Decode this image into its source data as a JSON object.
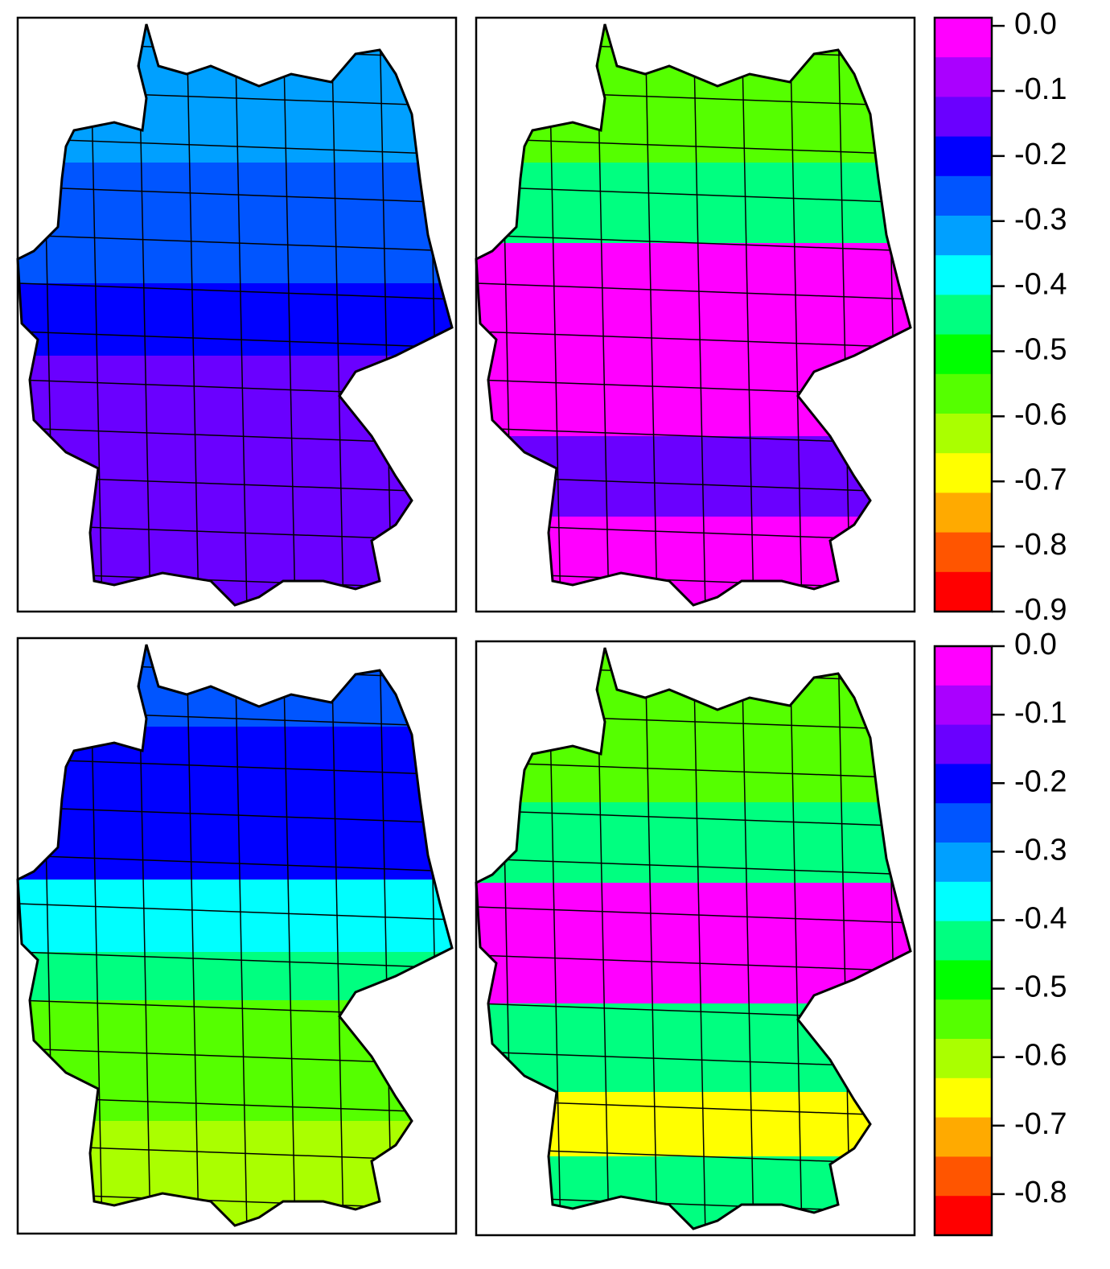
{
  "colorbars": [
    {
      "range": [
        -0.9,
        0.0125
      ],
      "colors": [
        "#ff00ff",
        "#aa00ff",
        "#6a00ff",
        "#0000ff",
        "#0055ff",
        "#00a0ff",
        "#00ffff",
        "#00ff80",
        "#00ff00",
        "#55ff00",
        "#aaff00",
        "#ffff00",
        "#ffaa00",
        "#ff5500",
        "#ff0000"
      ],
      "ticks": [
        {
          "value": 0,
          "label": "0.0"
        },
        {
          "value": -0.1,
          "label": "-0.1"
        },
        {
          "value": -0.2,
          "label": "-0.2"
        },
        {
          "value": -0.3,
          "label": "-0.3"
        },
        {
          "value": -0.4,
          "label": "-0.4"
        },
        {
          "value": -0.5,
          "label": "-0.5"
        },
        {
          "value": -0.6,
          "label": "-0.6"
        },
        {
          "value": -0.7,
          "label": "-0.7"
        },
        {
          "value": -0.8,
          "label": "-0.8"
        },
        {
          "value": -0.9,
          "label": "-0.9"
        }
      ]
    },
    {
      "range": [
        -0.86,
        0.0
      ],
      "colors": [
        "#ff00ff",
        "#aa00ff",
        "#6a00ff",
        "#0000ff",
        "#0055ff",
        "#00a0ff",
        "#00ffff",
        "#00ff80",
        "#00ff00",
        "#55ff00",
        "#aaff00",
        "#ffff00",
        "#ffaa00",
        "#ff5500",
        "#ff0000"
      ],
      "ticks": [
        {
          "value": 0,
          "label": "0.0"
        },
        {
          "value": -0.1,
          "label": "-0.1"
        },
        {
          "value": -0.2,
          "label": "-0.2"
        },
        {
          "value": -0.3,
          "label": "-0.3"
        },
        {
          "value": -0.4,
          "label": "-0.4"
        },
        {
          "value": -0.5,
          "label": "-0.5"
        },
        {
          "value": -0.6,
          "label": "-0.6"
        },
        {
          "value": -0.7,
          "label": "-0.7"
        },
        {
          "value": -0.8,
          "label": "-0.8"
        }
      ]
    }
  ]
}
